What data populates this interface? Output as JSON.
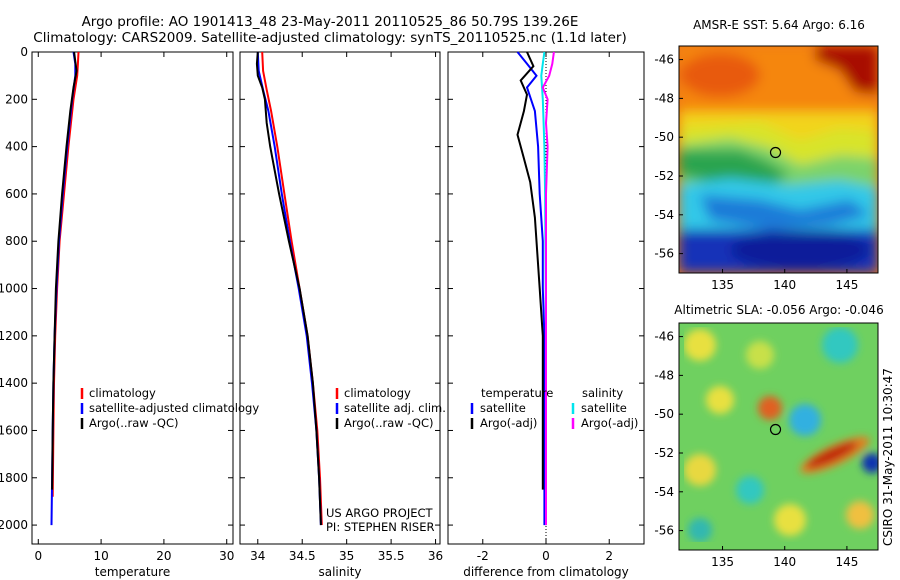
{
  "header": {
    "title_line1": "Argo profile: AO 1901413_48 23-May-2011 20110525_86 50.79S 139.26E",
    "title_line2": "Climatology: CARS2009. Satellite-adjusted climatology: synTS_20110525.nc (1.1d later)"
  },
  "credit": {
    "project": "US ARGO PROJECT",
    "pi": "PI: STEPHEN RISER",
    "stamp": "CSIRO 31-May-2011 10:30:47"
  },
  "colors": {
    "climatology": "#ff0000",
    "satellite": "#0000ff",
    "argo": "#000000",
    "sat_diff_salinity": "#00e5ee",
    "argo_diff_salinity": "#ff00ff"
  },
  "chart_data": [
    {
      "type": "line",
      "id": "temperature",
      "xlabel": "temperature",
      "ylabel": "",
      "ylim": [
        0,
        2080
      ],
      "y_reversed": true,
      "xlim": [
        -1,
        31
      ],
      "xticks": [
        0,
        10,
        20,
        30
      ],
      "yticks": [
        0,
        200,
        400,
        600,
        800,
        1000,
        1200,
        1400,
        1600,
        1800,
        2000
      ],
      "legend_labels": [
        "climatology",
        "satellite-adjusted climatology",
        "Argo(..raw -QC)"
      ],
      "series": [
        {
          "name": "climatology",
          "color": "#ff0000",
          "depth": [
            0,
            50,
            100,
            200,
            400,
            600,
            800,
            1000,
            1200,
            1400,
            1600,
            1880
          ],
          "values": [
            6.4,
            6.3,
            6.2,
            5.6,
            4.8,
            4.1,
            3.4,
            3.0,
            2.7,
            2.5,
            2.4,
            2.3
          ]
        },
        {
          "name": "satellite-adjusted climatology",
          "color": "#0000ff",
          "depth": [
            0,
            50,
            100,
            200,
            400,
            600,
            800,
            1000,
            1200,
            1400,
            1600,
            1800,
            2000
          ],
          "values": [
            5.6,
            5.9,
            5.9,
            5.4,
            4.6,
            3.9,
            3.3,
            2.9,
            2.6,
            2.4,
            2.3,
            2.2,
            2.1
          ]
        },
        {
          "name": "Argo(..raw -QC)",
          "color": "#000000",
          "depth": [
            0,
            40,
            80,
            150,
            250,
            400,
            600,
            800,
            1000,
            1200,
            1400,
            1600,
            1850
          ],
          "values": [
            5.7,
            5.9,
            6.1,
            5.6,
            5.1,
            4.5,
            3.8,
            3.2,
            2.8,
            2.6,
            2.4,
            2.3,
            2.2
          ]
        }
      ]
    },
    {
      "type": "line",
      "id": "salinity",
      "xlabel": "salinity",
      "ylim": [
        0,
        2080
      ],
      "y_reversed": true,
      "xlim": [
        33.8,
        36.05
      ],
      "xticks": [
        34,
        34.5,
        35,
        35.5,
        36
      ],
      "legend_labels": [
        "climatology",
        "satellite adj. clim.",
        "Argo(..raw -QC)"
      ],
      "series": [
        {
          "name": "climatology",
          "color": "#ff0000",
          "depth": [
            0,
            80,
            160,
            250,
            400,
            600,
            800,
            1000,
            1200,
            1400,
            1600,
            1800,
            2000
          ],
          "values": [
            34.05,
            34.06,
            34.1,
            34.15,
            34.22,
            34.3,
            34.38,
            34.47,
            34.56,
            34.62,
            34.67,
            34.7,
            34.72
          ]
        },
        {
          "name": "satellite adj. clim.",
          "color": "#0000ff",
          "depth": [
            0,
            80,
            160,
            250,
            400,
            600,
            800,
            1000,
            1200,
            1400,
            1600,
            1800,
            2000
          ],
          "values": [
            34.0,
            34.01,
            34.06,
            34.12,
            34.19,
            34.27,
            34.36,
            34.46,
            34.55,
            34.61,
            34.66,
            34.69,
            34.71
          ]
        },
        {
          "name": "Argo(..raw -QC)",
          "color": "#000000",
          "depth": [
            0,
            50,
            100,
            150,
            200,
            300,
            400,
            600,
            800,
            1000,
            1200,
            1400,
            1600,
            1800,
            2000
          ],
          "values": [
            34.0,
            33.99,
            34.0,
            34.05,
            34.08,
            34.1,
            34.14,
            34.24,
            34.35,
            34.47,
            34.56,
            34.62,
            34.66,
            34.69,
            34.71
          ]
        }
      ]
    },
    {
      "type": "line",
      "id": "difference",
      "xlabel": "difference from climatology",
      "ylim": [
        0,
        2080
      ],
      "y_reversed": true,
      "xlim": [
        -3.1,
        3.1
      ],
      "xticks": [
        -2,
        0,
        2
      ],
      "legend_headers": [
        "temperature",
        "salinity"
      ],
      "legend_labels": [
        "satellite",
        "Argo(-adj)",
        "satellite",
        "Argo(-adj)"
      ],
      "series": [
        {
          "name": "temperature satellite",
          "color": "#0000ff",
          "depth": [
            0,
            50,
            100,
            150,
            250,
            400,
            600,
            800,
            1000,
            1200,
            1400,
            1600,
            1800,
            2000
          ],
          "values": [
            -0.9,
            -0.6,
            -0.3,
            -0.6,
            -0.35,
            -0.25,
            -0.2,
            -0.1,
            -0.1,
            -0.05,
            -0.05,
            -0.05,
            -0.05,
            -0.05
          ]
        },
        {
          "name": "temperature Argo(-adj)",
          "color": "#000000",
          "depth": [
            0,
            60,
            120,
            180,
            250,
            350,
            450,
            550,
            700,
            900,
            1000,
            1200,
            1400,
            1600,
            1850
          ],
          "values": [
            -0.6,
            -0.4,
            -0.8,
            -0.6,
            -0.7,
            -0.9,
            -0.7,
            -0.5,
            -0.35,
            -0.25,
            -0.2,
            -0.1,
            -0.1,
            -0.1,
            -0.1
          ]
        },
        {
          "name": "salinity satellite",
          "color": "#00e5ee",
          "depth": [
            0,
            50,
            100,
            200,
            400,
            600,
            800,
            1000,
            1200,
            1400,
            1600,
            1800,
            2000
          ],
          "values": [
            -0.05,
            -0.1,
            -0.15,
            -0.1,
            -0.05,
            -0.03,
            -0.02,
            -0.01,
            0.0,
            0.0,
            0.0,
            0.0,
            0.0
          ]
        },
        {
          "name": "salinity Argo(-adj)",
          "color": "#ff00ff",
          "depth": [
            0,
            50,
            100,
            150,
            200,
            300,
            400,
            600,
            800,
            1000,
            1200,
            1400,
            1600,
            1800,
            2000
          ],
          "values": [
            0.25,
            0.2,
            0.1,
            -0.1,
            0.05,
            0.0,
            0.05,
            0.0,
            0.0,
            0.0,
            0.0,
            0.0,
            0.0,
            0.0,
            0.0
          ]
        }
      ]
    },
    {
      "type": "heatmap",
      "id": "sst_map",
      "title": "AMSR-E SST: 5.64 Argo: 6.16",
      "xlim": [
        131.5,
        147.5
      ],
      "ylim": [
        -57,
        -45.3
      ],
      "xticks": [
        135,
        140,
        145
      ],
      "yticks": [
        -46,
        -48,
        -50,
        -52,
        -54,
        -56
      ],
      "profile_location": {
        "lon": 139.26,
        "lat": -50.79
      }
    },
    {
      "type": "heatmap",
      "id": "sla_map",
      "title": "Altimetric SLA: -0.056 Argo: -0.046",
      "xlim": [
        131.5,
        147.5
      ],
      "ylim": [
        -57,
        -45.3
      ],
      "xticks": [
        135,
        140,
        145
      ],
      "yticks": [
        -46,
        -48,
        -50,
        -52,
        -54,
        -56
      ],
      "profile_location": {
        "lon": 139.26,
        "lat": -50.79
      }
    }
  ]
}
